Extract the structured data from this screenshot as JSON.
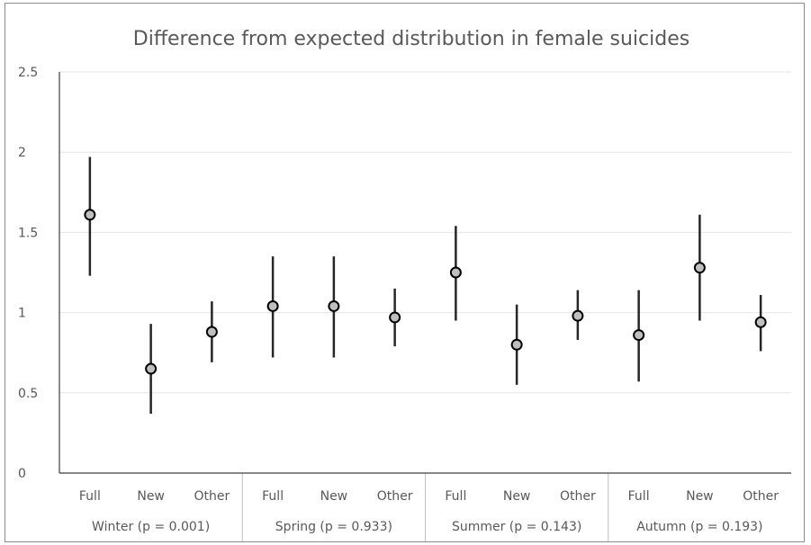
{
  "chart_data": {
    "type": "scatter",
    "title": "Difference from expected distribution in female suicides",
    "xlabel": "",
    "ylabel": "",
    "ylim": [
      0,
      2.5
    ],
    "yticks": [
      "0",
      "0.5",
      "1",
      "1.5",
      "2",
      "2.5"
    ],
    "grid": true,
    "legend": "none",
    "marker_color": "#bfbfbf",
    "errorbar_color": "#262626",
    "groups": [
      {
        "label": "Winter (p = 0.001)",
        "points": [
          {
            "category": "Full",
            "value": 1.61,
            "low": 1.23,
            "high": 1.97
          },
          {
            "category": "New",
            "value": 0.65,
            "low": 0.37,
            "high": 0.93
          },
          {
            "category": "Other",
            "value": 0.88,
            "low": 0.69,
            "high": 1.07
          }
        ]
      },
      {
        "label": "Spring (p = 0.933)",
        "points": [
          {
            "category": "Full",
            "value": 1.04,
            "low": 0.72,
            "high": 1.35
          },
          {
            "category": "New",
            "value": 1.04,
            "low": 0.72,
            "high": 1.35
          },
          {
            "category": "Other",
            "value": 0.97,
            "low": 0.79,
            "high": 1.15
          }
        ]
      },
      {
        "label": "Summer (p = 0.143)",
        "points": [
          {
            "category": "Full",
            "value": 1.25,
            "low": 0.95,
            "high": 1.54
          },
          {
            "category": "New",
            "value": 0.8,
            "low": 0.55,
            "high": 1.05
          },
          {
            "category": "Other",
            "value": 0.98,
            "low": 0.83,
            "high": 1.14
          }
        ]
      },
      {
        "label": "Autumn (p = 0.193)",
        "points": [
          {
            "category": "Full",
            "value": 0.86,
            "low": 0.57,
            "high": 1.14
          },
          {
            "category": "New",
            "value": 1.28,
            "low": 0.95,
            "high": 1.61
          },
          {
            "category": "Other",
            "value": 0.94,
            "low": 0.76,
            "high": 1.11
          }
        ]
      }
    ]
  }
}
